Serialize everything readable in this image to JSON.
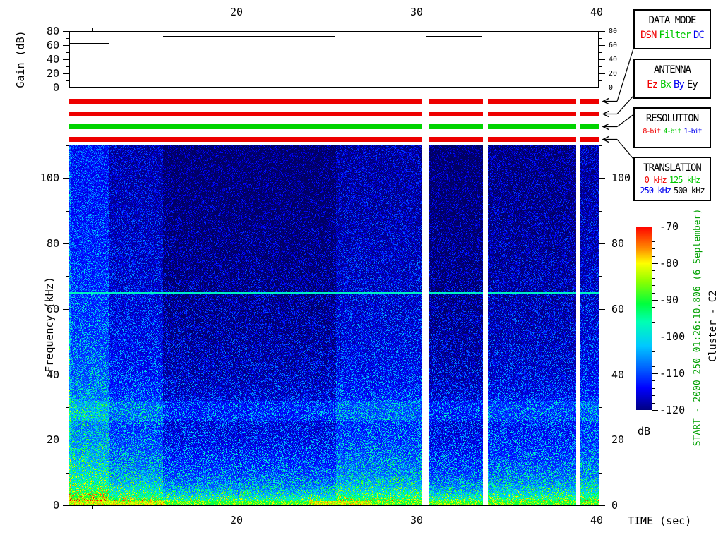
{
  "window": {
    "background": "#ffffff"
  },
  "gain_plot": {
    "ylabel": "Gain (dB)",
    "yticks": [
      0,
      20,
      40,
      60,
      80
    ],
    "ylim": [
      0,
      80
    ],
    "minor_step": 10
  },
  "spectrogram_axis": {
    "ylabel": "Frequency (kHz)",
    "yticks": [
      0,
      20,
      40,
      60,
      80,
      100
    ],
    "ylim": [
      0,
      110
    ],
    "minor_step": 10
  },
  "time_axis": {
    "label": "TIME (sec)",
    "ticks": [
      20,
      30,
      40
    ],
    "minor_step": 2,
    "range": [
      10.69,
      40.12
    ]
  },
  "colorbar": {
    "unit": "dB",
    "ticks": [
      -70,
      -80,
      -90,
      -100,
      -110,
      -120
    ],
    "minor_step": 2,
    "range": [
      -70,
      -120
    ]
  },
  "annotations": {
    "start_label": "START - 2000 250 01:26:10.806 (6 September)",
    "start_color": "#00a000",
    "spacecraft_label": "Cluster - C2"
  },
  "status_bars": [
    {
      "name": "data-mode-bar",
      "color": "#ee0000"
    },
    {
      "name": "antenna-bar",
      "color": "#ee0000"
    },
    {
      "name": "resolution-bar",
      "color": "#00d400"
    },
    {
      "name": "translation-bar",
      "color": "#ee0000"
    }
  ],
  "legend_boxes": [
    {
      "title": "DATA MODE",
      "rows": 1,
      "font": 14,
      "items": [
        {
          "label": "DSN",
          "color": "#f00000"
        },
        {
          "label": "Filter",
          "color": "#00c800"
        },
        {
          "label": "DC",
          "color": "#0000f0"
        }
      ]
    },
    {
      "title": "ANTENNA",
      "rows": 1,
      "font": 14,
      "items": [
        {
          "label": "Ez",
          "color": "#f00000"
        },
        {
          "label": "Bx",
          "color": "#00c800"
        },
        {
          "label": "By",
          "color": "#0000f0"
        },
        {
          "label": "Ey",
          "color": "#000000"
        }
      ]
    },
    {
      "title": "RESOLUTION",
      "rows": 1,
      "font": 10,
      "items": [
        {
          "label": "8-bit",
          "color": "#f00000"
        },
        {
          "label": "4-bit",
          "color": "#00c800"
        },
        {
          "label": "1-bit",
          "color": "#0000f0"
        }
      ]
    },
    {
      "title": "TRANSLATION",
      "rows": 2,
      "font": 12,
      "items": [
        {
          "label": "0 kHz",
          "color": "#f00000"
        },
        {
          "label": "125 kHz",
          "color": "#00c800"
        },
        {
          "label": "250 kHz",
          "color": "#0000f0"
        },
        {
          "label": "500 kHz",
          "color": "#000000"
        }
      ]
    }
  ],
  "chart_data": {
    "type": "heatmap",
    "description": "Wideband spectrogram, frequency vs time, power in dB with jet colormap; gain step plot on top",
    "x_range_sec": [
      10.69,
      40.12
    ],
    "y_range_khz": [
      0,
      110
    ],
    "z_range_db": [
      -120,
      -70
    ],
    "data_gaps_sec": [
      [
        30.28,
        30.68
      ],
      [
        33.69,
        33.97
      ],
      [
        38.87,
        39.07
      ]
    ],
    "gain_steps_db": [
      [
        10.69,
        12.9,
        63
      ],
      [
        12.9,
        15.9,
        68
      ],
      [
        15.9,
        25.5,
        73
      ],
      [
        25.6,
        30.2,
        68
      ],
      [
        30.5,
        33.6,
        73
      ],
      [
        33.9,
        38.9,
        72
      ],
      [
        39.1,
        40.1,
        68
      ]
    ],
    "noise_segments": [
      {
        "t": [
          10.69,
          12.9
        ],
        "offset_db": 7
      },
      {
        "t": [
          12.9,
          15.9
        ],
        "offset_db": 2
      },
      {
        "t": [
          15.9,
          25.5
        ],
        "offset_db": -3
      },
      {
        "t": [
          25.5,
          30.28
        ],
        "offset_db": 1
      },
      {
        "t": [
          30.68,
          33.69
        ],
        "offset_db": -3
      },
      {
        "t": [
          33.97,
          38.87
        ],
        "offset_db": -1
      },
      {
        "t": [
          39.07,
          40.12
        ],
        "offset_db": 1
      }
    ],
    "background_profile_khz_db": [
      [
        110,
        -120
      ],
      [
        90,
        -119.3
      ],
      [
        80,
        -118.6
      ],
      [
        70,
        -118
      ],
      [
        60,
        -117.2
      ],
      [
        50,
        -116.2
      ],
      [
        40,
        -114.8
      ],
      [
        34,
        -113.2
      ],
      [
        30,
        -111.2
      ],
      [
        27,
        -111.5
      ],
      [
        24,
        -112.2
      ],
      [
        20,
        -111.3
      ],
      [
        16,
        -109.8
      ],
      [
        12,
        -107.8
      ],
      [
        9,
        -106
      ],
      [
        6.5,
        -103.5
      ],
      [
        4.5,
        -100.5
      ],
      [
        3,
        -97.5
      ],
      [
        2,
        -94
      ],
      [
        1.2,
        -90.5
      ],
      [
        0.6,
        -87.5
      ],
      [
        0,
        -86
      ]
    ],
    "features": {
      "narrowband_line": {
        "freq_khz": 65,
        "level_db": -95
      },
      "diffuse_band": {
        "freq_khz": [
          26,
          32
        ],
        "boost_db": 1.5
      },
      "low_freq_emission": {
        "below_khz": 1.3,
        "level_db": -88,
        "hot_intervals_sec": [
          [
            10.69,
            16.0
          ],
          [
            24.0,
            27.4
          ]
        ]
      },
      "faint_vertical_lines_sec": [
        20.1,
        25.75
      ]
    }
  }
}
